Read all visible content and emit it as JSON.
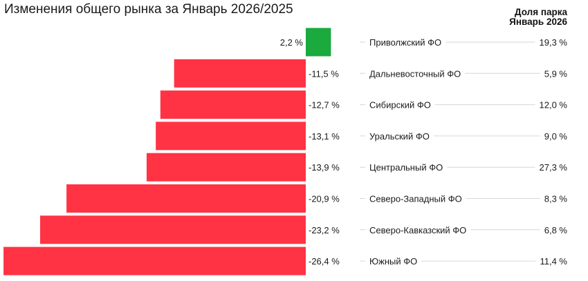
{
  "chart_data": {
    "type": "bar",
    "orientation": "horizontal",
    "title": "Изменения общего рынка за Январь 2026/2025",
    "share_column_title": [
      "Доля парка",
      "Январь 2026"
    ],
    "categories": [
      "Приволжский ФО",
      "Дальневосточный ФО",
      "Сибирский ФО",
      "Уральский ФО",
      "Центральный ФО",
      "Северо-Западный ФО",
      "Северо-Кавказский ФО",
      "Южный ФО"
    ],
    "values": [
      2.2,
      -11.5,
      -12.7,
      -13.1,
      -13.9,
      -20.9,
      -23.2,
      -26.4
    ],
    "value_labels": [
      "2,2 %",
      "-11,5 %",
      "-12,7 %",
      "-13,1 %",
      "-13,9 %",
      "-20,9 %",
      "-23,2 %",
      "-26,4 %"
    ],
    "share_values": [
      19.3,
      5.9,
      12.0,
      9.0,
      27.3,
      8.3,
      6.8,
      11.4
    ],
    "share_labels": [
      "19,3 %",
      "5,9 %",
      "12,0 %",
      "9,0 %",
      "27,3 %",
      "8,3 %",
      "6,8 %",
      "11,4 %"
    ],
    "unit": "%",
    "colors": {
      "positive": "#1aaa3e",
      "negative": "#ff3344",
      "gridline": "#d6d6d6"
    },
    "grid": false,
    "legend": "none"
  }
}
